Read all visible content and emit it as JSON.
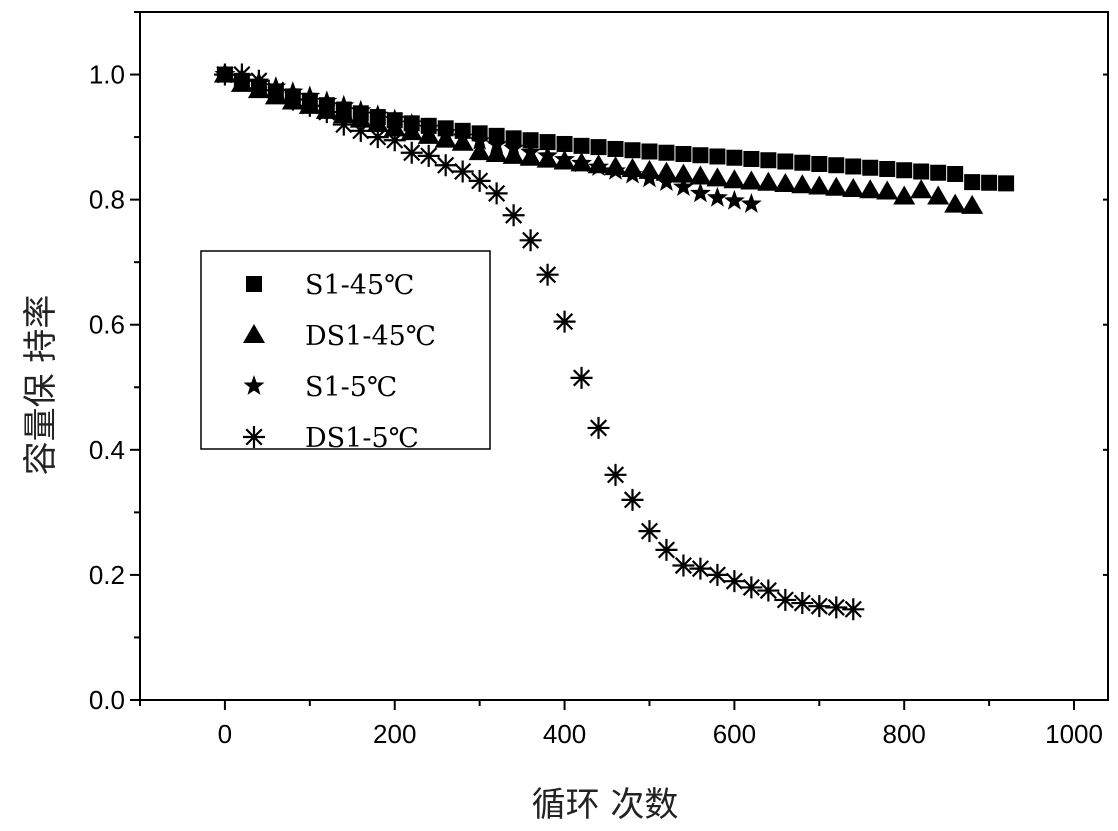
{
  "chart_data": {
    "type": "scatter",
    "title": "",
    "xlabel": "循环 次数",
    "ylabel": "容量保 持率",
    "xlim": [
      -100,
      1040
    ],
    "ylim": [
      0,
      1.1
    ],
    "xticks": [
      0,
      200,
      400,
      600,
      800,
      1000
    ],
    "xtick_labels": [
      "0",
      "200",
      "400",
      "600",
      "800",
      "1000"
    ],
    "yticks": [
      0.0,
      0.2,
      0.4,
      0.6,
      0.8,
      1.0
    ],
    "ytick_labels": [
      "0.0",
      "0.2",
      "0.4",
      "0.6",
      "0.8",
      "1.0"
    ],
    "grid": false,
    "legend_position": "center-left",
    "color": "#000000",
    "series": [
      {
        "name": "S1-45℃",
        "marker": "square",
        "x_start": 0,
        "x_step": 20,
        "values": [
          1.0,
          0.99,
          0.98,
          0.972,
          0.965,
          0.958,
          0.951,
          0.944,
          0.938,
          0.932,
          0.927,
          0.922,
          0.918,
          0.914,
          0.91,
          0.906,
          0.902,
          0.898,
          0.895,
          0.892,
          0.889,
          0.886,
          0.884,
          0.881,
          0.879,
          0.877,
          0.875,
          0.873,
          0.871,
          0.869,
          0.867,
          0.865,
          0.863,
          0.861,
          0.859,
          0.857,
          0.855,
          0.853,
          0.851,
          0.849,
          0.847,
          0.845,
          0.843,
          0.841,
          0.828,
          0.827,
          0.826
        ]
      },
      {
        "name": "DS1-45℃",
        "marker": "triangle",
        "x_start": 0,
        "x_step": 20,
        "values": [
          1.0,
          0.985,
          0.975,
          0.965,
          0.957,
          0.95,
          0.942,
          0.935,
          0.928,
          0.921,
          0.914,
          0.908,
          0.902,
          0.896,
          0.891,
          0.876,
          0.873,
          0.87,
          0.867,
          0.864,
          0.861,
          0.858,
          0.855,
          0.852,
          0.849,
          0.846,
          0.843,
          0.84,
          0.837,
          0.834,
          0.831,
          0.829,
          0.827,
          0.825,
          0.823,
          0.821,
          0.819,
          0.817,
          0.815,
          0.813,
          0.805,
          0.815,
          0.805,
          0.792,
          0.79
        ]
      },
      {
        "name": "S1-5℃",
        "marker": "star",
        "x_start": 0,
        "x_step": 20,
        "values": [
          1.0,
          0.995,
          0.988,
          0.98,
          0.972,
          0.965,
          0.957,
          0.95,
          0.942,
          0.935,
          0.928,
          0.921,
          0.914,
          0.907,
          0.9,
          0.894,
          0.888,
          0.882,
          0.876,
          0.87,
          0.864,
          0.858,
          0.852,
          0.846,
          0.84,
          0.834,
          0.828,
          0.82,
          0.81,
          0.803,
          0.798,
          0.793
        ]
      },
      {
        "name": "DS1-5℃",
        "marker": "asterisk",
        "x_start": 0,
        "x_step": 20,
        "values": [
          1.0,
          1.0,
          0.99,
          0.975,
          0.96,
          0.95,
          0.94,
          0.92,
          0.91,
          0.9,
          0.895,
          0.875,
          0.87,
          0.855,
          0.845,
          0.83,
          0.81,
          0.775,
          0.735,
          0.68,
          0.605,
          0.515,
          0.435,
          0.36,
          0.32,
          0.27,
          0.24,
          0.215,
          0.21,
          0.2,
          0.19,
          0.18,
          0.175,
          0.16,
          0.155,
          0.15,
          0.148,
          0.145
        ]
      }
    ]
  }
}
